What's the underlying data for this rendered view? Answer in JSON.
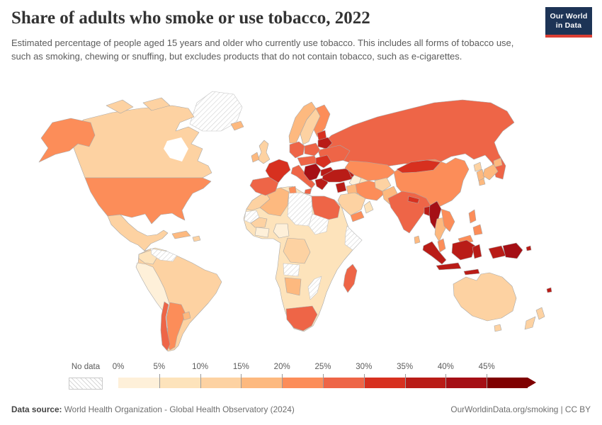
{
  "header": {
    "title": "Share of adults who smoke or use tobacco, 2022",
    "subtitle": "Estimated percentage of people aged 15 years and older who currently use tobacco. This includes all forms of tobacco use, such as smoking, chewing or snuffing, but excludes products that do not contain tobacco, such as e-cigarettes.",
    "logo": {
      "line1": "Our World",
      "line2": "in Data",
      "bg_color": "#1d3456",
      "accent_color": "#dc3f34"
    }
  },
  "legend": {
    "no_data_label": "No data",
    "tick_labels": [
      "0%",
      "5%",
      "10%",
      "15%",
      "20%",
      "25%",
      "30%",
      "35%",
      "40%",
      "45%"
    ]
  },
  "footer": {
    "source_label": "Data source:",
    "source_value": " World Health Organization - Global Health Observatory (2024)",
    "rights": "OurWorldinData.org/smoking | CC BY"
  },
  "chart_data": {
    "type": "choropleth_map",
    "title": "Share of adults who smoke or use tobacco, 2022",
    "unit": "% of people aged 15+ currently using tobacco",
    "year": 2022,
    "color_scale": {
      "bin_size": 5,
      "bin_starts": [
        0,
        5,
        10,
        15,
        20,
        25,
        30,
        35,
        40,
        45
      ],
      "bin_colors": [
        "#fef0d9",
        "#fde3bb",
        "#fdd2a2",
        "#fdb97f",
        "#fc8d59",
        "#ee6547",
        "#d7301f",
        "#b91c17",
        "#a50f15",
        "#7f0000"
      ],
      "open_ended_top": "45%+",
      "no_data_fill": "hatched"
    },
    "regions": {
      "Canada": 12,
      "United States": 23,
      "Mexico": 13,
      "Guatemala": 9,
      "Cuba": 17,
      "Haiti": 12,
      "Greenland": null,
      "Colombia": 8,
      "Venezuela": null,
      "Peru": 4,
      "Brazil": 12,
      "Bolivia": 13,
      "Uruguay": 18,
      "Argentina": 22,
      "Chile": 28,
      "Iceland": 17,
      "United Kingdom": 13,
      "Ireland": 18,
      "Norway": 16,
      "Sweden": 12,
      "Finland": 22,
      "Denmark": 17,
      "Latvia": 33,
      "Germany": 28,
      "Poland": 28,
      "France": 33,
      "Spain": 27,
      "Italy": 26,
      "Austria": 29,
      "Romania": 31,
      "Serbia": 42,
      "Bulgaria": 38,
      "Greece": 37,
      "Belarus": 37,
      "Ukraine": 26,
      "Turkey": 38,
      "Russia": 27,
      "Georgia": 36,
      "Morocco": 14,
      "Western Sahara": null,
      "Algeria": 17,
      "Tunisia": 23,
      "Libya": null,
      "Egypt": 26,
      "Mauritania": 12,
      "Mali": 7,
      "Nigeria": 4,
      "Ghana": 4,
      "Sudan": null,
      "Somalia": null,
      "Ethiopia": 5,
      "Kenya": 9,
      "Democratic Republic of Congo": 13,
      "Angola": null,
      "Namibia": 16,
      "South Africa": 26,
      "Mozambique": null,
      "Madagascar": 28,
      "Saudi Arabia": 13,
      "Yemen": 22,
      "Oman": 8,
      "Iraq": 18,
      "Syria": 36,
      "Iran": 21,
      "Kazakhstan": 22,
      "Turkmenistan": 4,
      "Uzbekistan": 8,
      "Afghanistan": 13,
      "Pakistan": 17,
      "India": 27,
      "Nepal": 31,
      "Bangladesh": 36,
      "Sri Lanka": 17,
      "China": 24,
      "Mongolia": 31,
      "North Korea": 13,
      "South Korea": 18,
      "Japan": 17,
      "Myanmar": 44,
      "Thailand": 19,
      "Vietnam": 23,
      "Malaysia": 21,
      "Indonesia": 38,
      "Philippines": 23,
      "Papua New Guinea": 40,
      "Solomon Islands": 35,
      "Fiji": 36,
      "Australia": 13,
      "New Zealand": 13
    }
  }
}
